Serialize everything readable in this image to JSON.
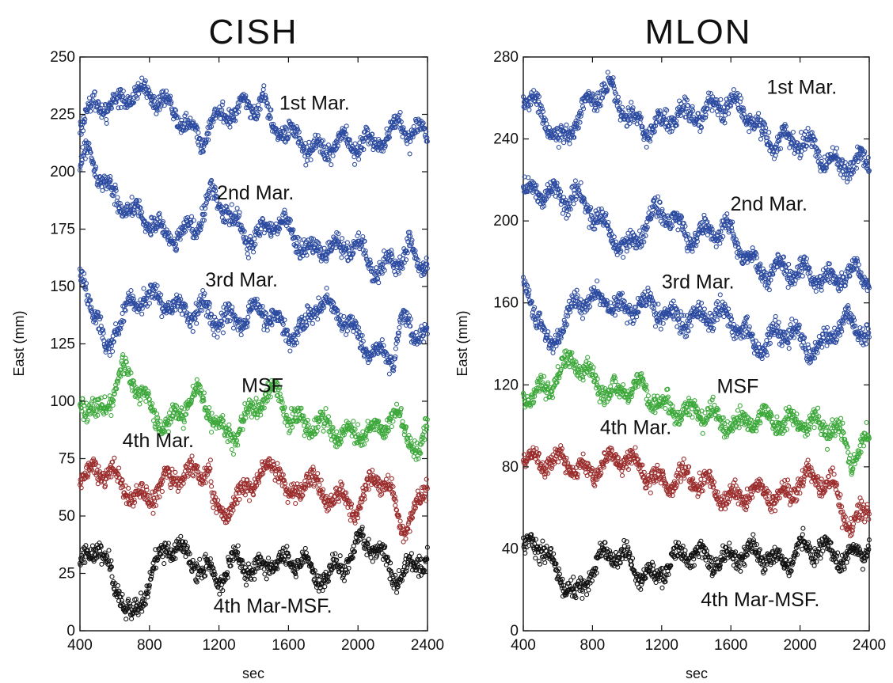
{
  "chart_data": [
    {
      "type": "scatter",
      "title": "CISH",
      "xlabel": "sec",
      "ylabel": "East (mm)",
      "xlim": [
        400,
        2400
      ],
      "ylim": [
        0,
        250
      ],
      "xticks": [
        "400",
        "800",
        "1200",
        "1600",
        "2000",
        "2400"
      ],
      "yticks": [
        "0",
        "25",
        "50",
        "75",
        "100",
        "125",
        "150",
        "175",
        "200",
        "225",
        "250"
      ],
      "grid": false,
      "series": [
        {
          "name": "1st Mar.",
          "color": "#2b4aa0",
          "label_pos": [
            1750,
            227
          ],
          "x": [
            400,
            500,
            600,
            700,
            750,
            800,
            900,
            1000,
            1100,
            1150,
            1200,
            1300,
            1400,
            1450,
            1500,
            1600,
            1700,
            1800,
            1900,
            2000,
            2100,
            2200,
            2250,
            2300,
            2400
          ],
          "y": [
            222,
            225,
            230,
            238,
            236,
            232,
            226,
            224,
            216,
            222,
            220,
            226,
            230,
            236,
            222,
            214,
            210,
            212,
            214,
            208,
            212,
            220,
            226,
            216,
            214
          ]
        },
        {
          "name": "2nd Mar.",
          "color": "#2b4aa0",
          "label_pos": [
            1410,
            188
          ],
          "x": [
            400,
            450,
            500,
            600,
            700,
            800,
            900,
            1000,
            1100,
            1150,
            1200,
            1300,
            1400,
            1500,
            1600,
            1700,
            1800,
            1900,
            2000,
            2100,
            2200,
            2300,
            2350,
            2400
          ],
          "y": [
            198,
            205,
            200,
            192,
            183,
            175,
            172,
            176,
            180,
            188,
            184,
            178,
            174,
            176,
            172,
            168,
            170,
            164,
            166,
            160,
            162,
            164,
            155,
            162
          ]
        },
        {
          "name": "3rd Mar.",
          "color": "#2b4aa0",
          "label_pos": [
            1330,
            150
          ],
          "x": [
            400,
            450,
            500,
            550,
            600,
            700,
            800,
            900,
            1000,
            1100,
            1200,
            1300,
            1400,
            1500,
            1600,
            1700,
            1750,
            1800,
            1900,
            2000,
            2100,
            2200,
            2250,
            2300,
            2400
          ],
          "y": [
            152,
            146,
            138,
            122,
            134,
            140,
            144,
            146,
            140,
            136,
            134,
            138,
            140,
            134,
            128,
            136,
            145,
            142,
            134,
            128,
            124,
            118,
            132,
            128,
            130
          ]
        },
        {
          "name": "MSF",
          "color": "#3ca83a",
          "label_pos": [
            1450,
            104
          ],
          "x": [
            400,
            500,
            600,
            650,
            700,
            800,
            900,
            1000,
            1100,
            1200,
            1300,
            1400,
            1500,
            1550,
            1600,
            1700,
            1800,
            1900,
            2000,
            2100,
            2200,
            2300,
            2350,
            2400
          ],
          "y": [
            102,
            98,
            104,
            110,
            108,
            98,
            92,
            96,
            100,
            90,
            88,
            94,
            100,
            104,
            96,
            92,
            86,
            84,
            90,
            88,
            90,
            84,
            78,
            92
          ]
        },
        {
          "name": "4th Mar.",
          "color": "#9b2c2c",
          "label_pos": [
            850,
            80
          ],
          "x": [
            400,
            500,
            600,
            700,
            800,
            900,
            1000,
            1100,
            1150,
            1160,
            1200,
            1300,
            1400,
            1500,
            1550,
            1600,
            1700,
            1750,
            1800,
            1900,
            2000,
            2100,
            2200,
            2250,
            2300,
            2400
          ],
          "y": [
            70,
            72,
            64,
            58,
            62,
            66,
            64,
            70,
            74,
            58,
            54,
            56,
            62,
            72,
            76,
            58,
            66,
            60,
            56,
            60,
            56,
            66,
            56,
            46,
            50,
            66
          ]
        },
        {
          "name": "4th Mar-MSF.",
          "color": "#111111",
          "label_pos": [
            1510,
            8
          ],
          "x": [
            400,
            450,
            500,
            550,
            600,
            650,
            700,
            750,
            800,
            900,
            1000,
            1100,
            1150,
            1200,
            1300,
            1400,
            1500,
            1600,
            1700,
            1750,
            1800,
            1900,
            2000,
            2100,
            2200,
            2300,
            2400
          ],
          "y": [
            30,
            34,
            36,
            26,
            18,
            14,
            6,
            16,
            26,
            34,
            32,
            30,
            28,
            24,
            28,
            24,
            34,
            30,
            28,
            20,
            24,
            30,
            38,
            34,
            24,
            30,
            32
          ]
        }
      ]
    },
    {
      "type": "scatter",
      "title": "MLON",
      "xlabel": "sec",
      "ylabel": "East (mm)",
      "xlim": [
        400,
        2400
      ],
      "ylim": [
        0,
        280
      ],
      "xticks": [
        "400",
        "800",
        "1200",
        "1600",
        "2000",
        "2400"
      ],
      "yticks": [
        "0",
        "40",
        "80",
        "120",
        "160",
        "200",
        "240",
        "280"
      ],
      "grid": false,
      "series": [
        {
          "name": "1st Mar.",
          "color": "#2b4aa0",
          "label_pos": [
            2010,
            262
          ],
          "x": [
            400,
            500,
            600,
            700,
            800,
            900,
            1000,
            1100,
            1200,
            1300,
            1400,
            1500,
            1600,
            1700,
            1800,
            1900,
            2000,
            2100,
            2200,
            2300,
            2400
          ],
          "y": [
            258,
            250,
            240,
            252,
            258,
            262,
            254,
            248,
            244,
            250,
            254,
            258,
            254,
            250,
            244,
            240,
            236,
            234,
            230,
            228,
            224
          ]
        },
        {
          "name": "2nd Mar.",
          "color": "#2b4aa0",
          "label_pos": [
            1820,
            205
          ],
          "x": [
            400,
            500,
            600,
            700,
            800,
            900,
            1000,
            1100,
            1200,
            1300,
            1400,
            1500,
            1600,
            1700,
            1800,
            1900,
            2000,
            2100,
            2200,
            2300,
            2400
          ],
          "y": [
            210,
            214,
            216,
            212,
            200,
            194,
            190,
            196,
            202,
            198,
            196,
            194,
            190,
            184,
            178,
            174,
            172,
            176,
            174,
            172,
            170
          ]
        },
        {
          "name": "3rd Mar.",
          "color": "#2b4aa0",
          "label_pos": [
            1410,
            167
          ],
          "x": [
            400,
            450,
            500,
            550,
            600,
            700,
            800,
            900,
            1000,
            1100,
            1200,
            1300,
            1400,
            1500,
            1600,
            1700,
            1800,
            1900,
            2000,
            2100,
            2200,
            2300,
            2400
          ],
          "y": [
            164,
            162,
            152,
            140,
            148,
            156,
            160,
            164,
            158,
            156,
            154,
            156,
            154,
            150,
            152,
            148,
            138,
            144,
            142,
            140,
            146,
            148,
            144
          ]
        },
        {
          "name": "MSF",
          "color": "#3ca83a",
          "label_pos": [
            1640,
            116
          ],
          "x": [
            400,
            500,
            600,
            700,
            800,
            900,
            1000,
            1100,
            1200,
            1300,
            1400,
            1500,
            1600,
            1700,
            1800,
            1900,
            2000,
            2100,
            2200,
            2250,
            2300,
            2400
          ],
          "y": [
            116,
            120,
            124,
            128,
            124,
            120,
            116,
            114,
            112,
            110,
            104,
            102,
            104,
            104,
            100,
            100,
            106,
            102,
            94,
            90,
            84,
            96
          ]
        },
        {
          "name": "4th Mar.",
          "color": "#9b2c2c",
          "label_pos": [
            1050,
            96
          ],
          "x": [
            400,
            500,
            600,
            700,
            800,
            900,
            1000,
            1100,
            1200,
            1300,
            1400,
            1500,
            1600,
            1700,
            1800,
            1900,
            2000,
            2100,
            2200,
            2250,
            2300,
            2400
          ],
          "y": [
            88,
            84,
            80,
            78,
            82,
            84,
            80,
            78,
            76,
            74,
            70,
            70,
            68,
            66,
            64,
            68,
            76,
            72,
            66,
            58,
            54,
            64
          ]
        },
        {
          "name": "4th Mar-MSF.",
          "color": "#111111",
          "label_pos": [
            1770,
            12
          ],
          "x": [
            400,
            450,
            500,
            550,
            600,
            650,
            700,
            750,
            800,
            900,
            1000,
            1100,
            1200,
            1300,
            1400,
            1500,
            1600,
            1700,
            1800,
            1900,
            2000,
            2100,
            2200,
            2300,
            2400
          ],
          "y": [
            42,
            44,
            40,
            30,
            24,
            22,
            18,
            26,
            34,
            36,
            32,
            30,
            30,
            34,
            36,
            38,
            36,
            34,
            36,
            38,
            40,
            36,
            38,
            40,
            42
          ]
        }
      ]
    }
  ]
}
